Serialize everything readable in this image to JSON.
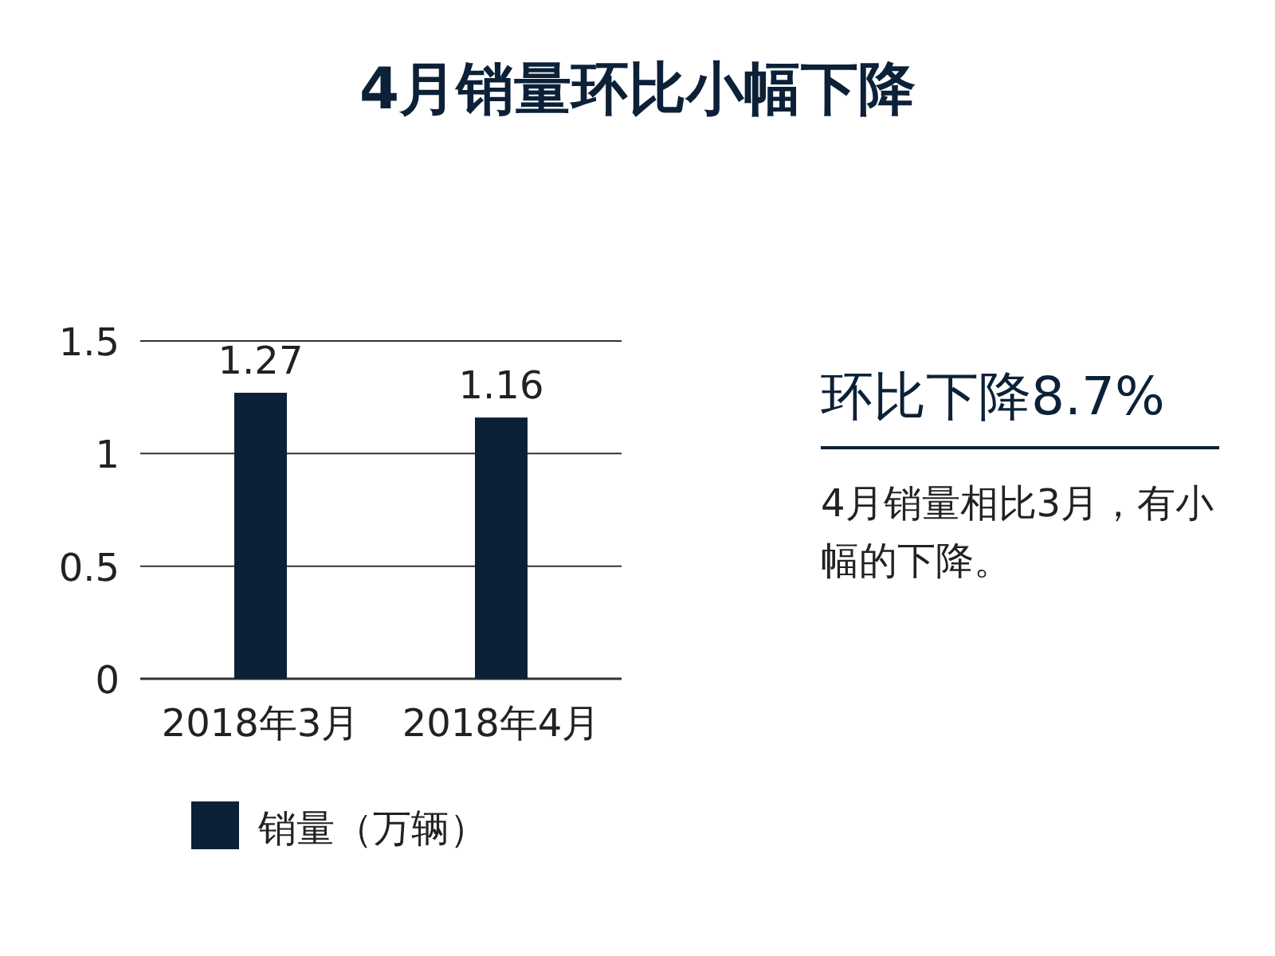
{
  "chart_data": {
    "type": "bar",
    "title": "4月销量环比小幅下降",
    "categories": [
      "2018年3月",
      "2018年4月"
    ],
    "series": [
      {
        "name": "销量（万辆）",
        "color": "#0c2138",
        "values": [
          1.27,
          1.16
        ]
      }
    ],
    "ylim": [
      0,
      1.5
    ],
    "yticks": [
      0,
      0.5,
      1,
      1.5
    ],
    "grid": "y",
    "legend": "bottom",
    "data_labels": true,
    "annotations": [
      "环比下降8.7%",
      "4月销量相比3月，有小幅的下降。"
    ]
  }
}
